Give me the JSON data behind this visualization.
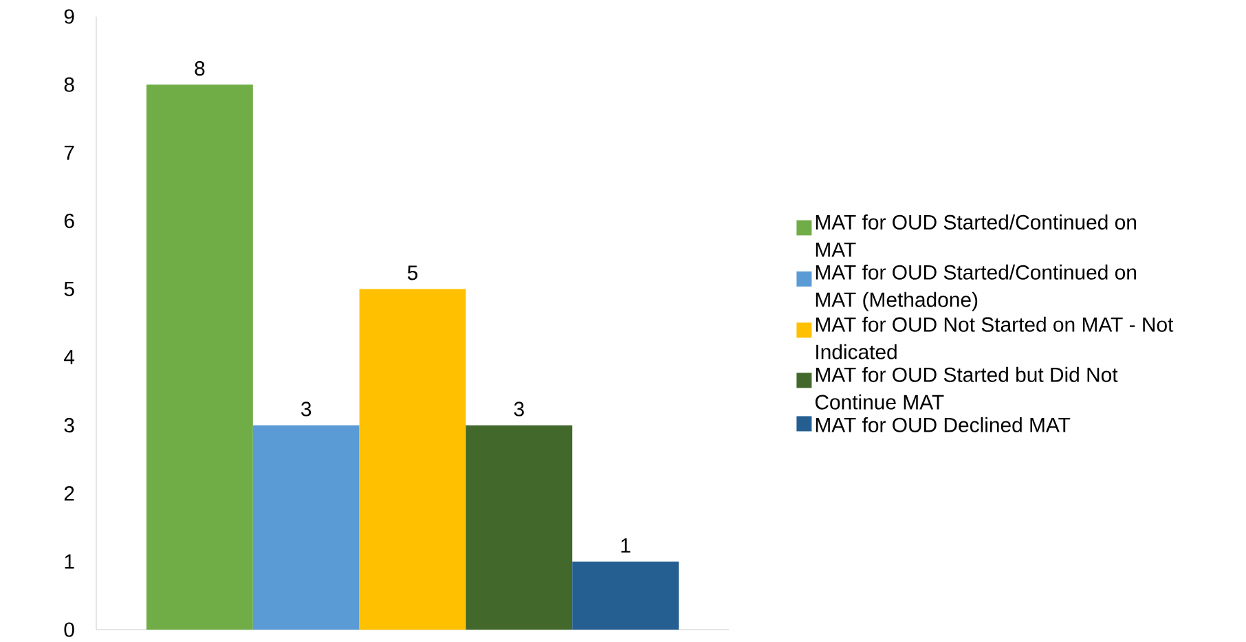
{
  "chart_data": {
    "type": "bar",
    "categories": [
      null
    ],
    "series": [
      {
        "name": "MAT for OUD Started/Continued on MAT",
        "color": "#70ad47",
        "values": [
          8
        ]
      },
      {
        "name": "MAT for OUD Started/Continued on MAT (Methadone)",
        "color": "#5b9bd5",
        "values": [
          3
        ]
      },
      {
        "name": "MAT for OUD Not Started on MAT - Not Indicated",
        "color": "#ffc000",
        "values": [
          5
        ]
      },
      {
        "name": "MAT for OUD Started but Did Not Continue MAT",
        "color": "#43682b",
        "values": [
          3
        ]
      },
      {
        "name": "MAT for OUD Declined MAT",
        "color": "#255e91",
        "values": [
          1
        ]
      }
    ],
    "ylim": [
      0,
      9
    ],
    "yticks": [
      0,
      1,
      2,
      3,
      4,
      5,
      6,
      7,
      8,
      9
    ],
    "data_labels": true,
    "legend": "right",
    "grid": false
  }
}
